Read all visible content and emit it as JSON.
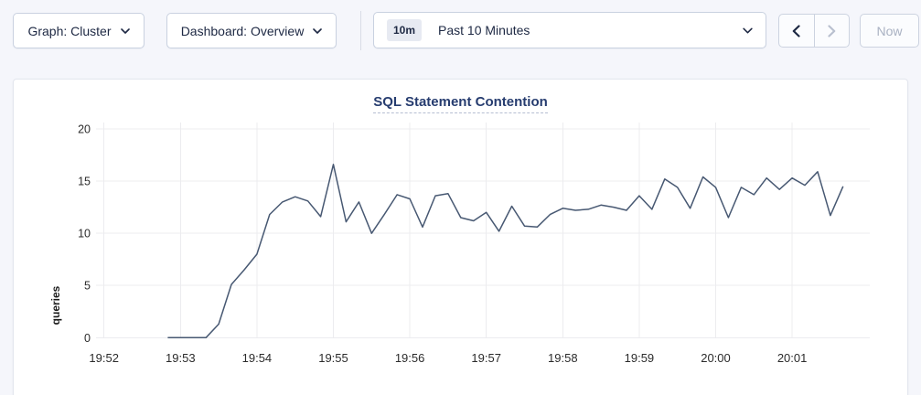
{
  "toolbar": {
    "graph_dropdown": {
      "label": "Graph: Cluster"
    },
    "dashboard_dropdown": {
      "label": "Dashboard: Overview"
    },
    "time_picker": {
      "badge": "10m",
      "value": "Past 10 Minutes"
    },
    "now_button": "Now"
  },
  "chart_data": {
    "type": "line",
    "title": "SQL Statement Contention",
    "ylabel": "queries",
    "xlabel": "",
    "ylim": [
      0,
      20
    ],
    "y_ticks": [
      0,
      5,
      10,
      15,
      20
    ],
    "x_tick_labels": [
      "19:52",
      "19:53",
      "19:54",
      "19:55",
      "19:56",
      "19:57",
      "19:58",
      "19:59",
      "20:00",
      "20:01"
    ],
    "x_unit": "seconds_after_19:52:00",
    "grid": true,
    "legend_position": "none",
    "line_color": "#475872",
    "series": [
      {
        "name": "queries",
        "points": [
          [
            50,
            0
          ],
          [
            60,
            0
          ],
          [
            70,
            0
          ],
          [
            80,
            0
          ],
          [
            90,
            1.3
          ],
          [
            100,
            5.1
          ],
          [
            110,
            6.5
          ],
          [
            120,
            8.0
          ],
          [
            130,
            11.8
          ],
          [
            140,
            13.0
          ],
          [
            150,
            13.5
          ],
          [
            160,
            13.1
          ],
          [
            170,
            11.6
          ],
          [
            180,
            16.6
          ],
          [
            190,
            11.1
          ],
          [
            200,
            13.0
          ],
          [
            210,
            10.0
          ],
          [
            220,
            11.8
          ],
          [
            230,
            13.7
          ],
          [
            240,
            13.3
          ],
          [
            250,
            10.6
          ],
          [
            260,
            13.6
          ],
          [
            270,
            13.8
          ],
          [
            280,
            11.5
          ],
          [
            290,
            11.2
          ],
          [
            300,
            12.0
          ],
          [
            310,
            10.2
          ],
          [
            320,
            12.6
          ],
          [
            330,
            10.7
          ],
          [
            340,
            10.6
          ],
          [
            350,
            11.8
          ],
          [
            360,
            12.4
          ],
          [
            370,
            12.2
          ],
          [
            380,
            12.3
          ],
          [
            390,
            12.7
          ],
          [
            400,
            12.5
          ],
          [
            410,
            12.2
          ],
          [
            420,
            13.6
          ],
          [
            430,
            12.3
          ],
          [
            440,
            15.2
          ],
          [
            450,
            14.4
          ],
          [
            460,
            12.4
          ],
          [
            470,
            15.4
          ],
          [
            480,
            14.4
          ],
          [
            490,
            11.5
          ],
          [
            500,
            14.4
          ],
          [
            510,
            13.7
          ],
          [
            520,
            15.3
          ],
          [
            530,
            14.2
          ],
          [
            540,
            15.3
          ],
          [
            550,
            14.6
          ],
          [
            560,
            15.9
          ],
          [
            570,
            11.7
          ],
          [
            580,
            14.5
          ]
        ]
      }
    ]
  }
}
